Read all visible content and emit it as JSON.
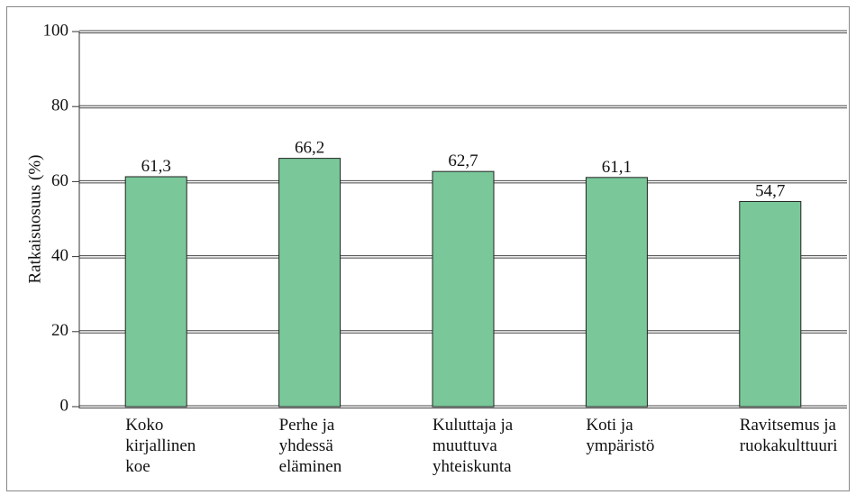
{
  "chart_data": {
    "type": "bar",
    "y_label": "Ratkaisuosuus (%)",
    "categories": [
      "Koko\nkirjallinen\nkoe",
      "Perhe ja\nyhdessä\neläminen",
      "Kuluttaja ja\nmuuttuva\nyhteiskunta",
      "Koti ja\nympäristö",
      "Ravitsemus ja\nruokakulttuuri"
    ],
    "values": [
      61.3,
      66.2,
      62.7,
      61.1,
      54.7
    ],
    "value_labels": [
      "61,3",
      "66,2",
      "62,7",
      "61,1",
      "54,7"
    ],
    "color": "#7ac89a",
    "ylim": [
      0,
      100
    ],
    "yticks": [
      0,
      20,
      40,
      60,
      80,
      100
    ],
    "grid": true
  }
}
